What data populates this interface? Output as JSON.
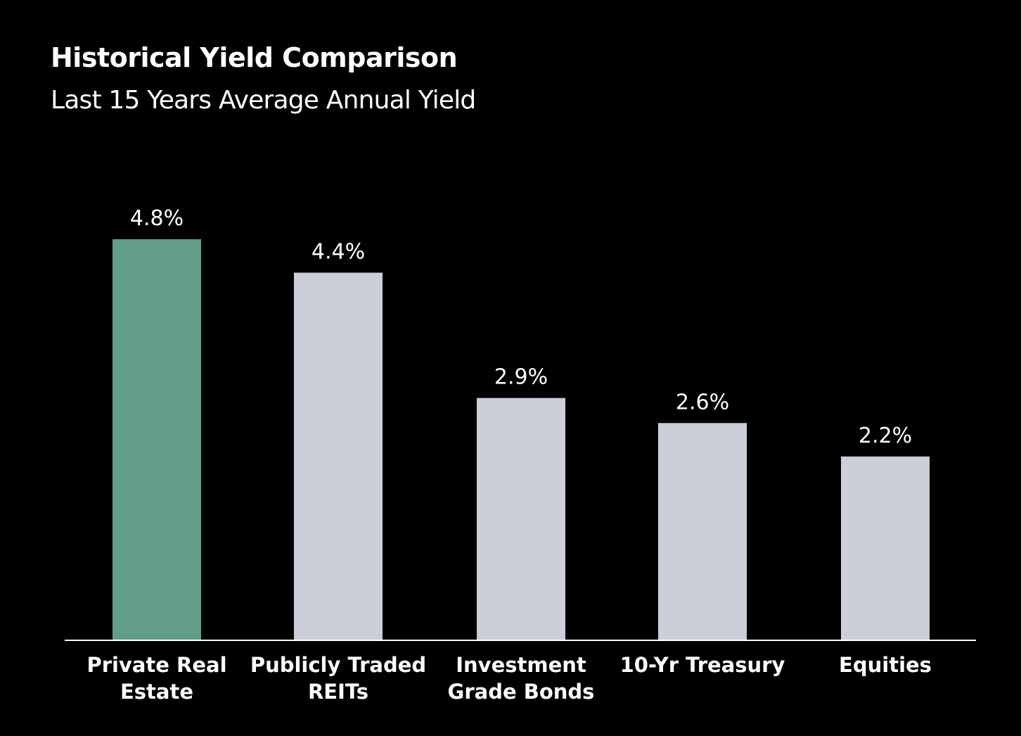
{
  "chart_data": {
    "type": "bar",
    "title": "Historical Yield Comparison",
    "subtitle": "Last 15 Years Average Annual Yield",
    "categories": [
      [
        "Private Real",
        "Estate"
      ],
      [
        "Publicly Traded",
        "REITs"
      ],
      [
        "Investment",
        "Grade Bonds"
      ],
      [
        "10-Yr Treasury"
      ],
      [
        "Equities"
      ]
    ],
    "values": [
      4.8,
      4.4,
      2.9,
      2.6,
      2.2
    ],
    "value_labels": [
      "4.8%",
      "4.4%",
      "2.9%",
      "2.6%",
      "2.2%"
    ],
    "ylim": [
      0,
      4.8
    ],
    "grid": false,
    "colors": {
      "highlight": "#639E8C",
      "default": "#CCCFD9",
      "axis": "#FFFFFF",
      "background": "#000000"
    },
    "highlight_index": 0
  }
}
